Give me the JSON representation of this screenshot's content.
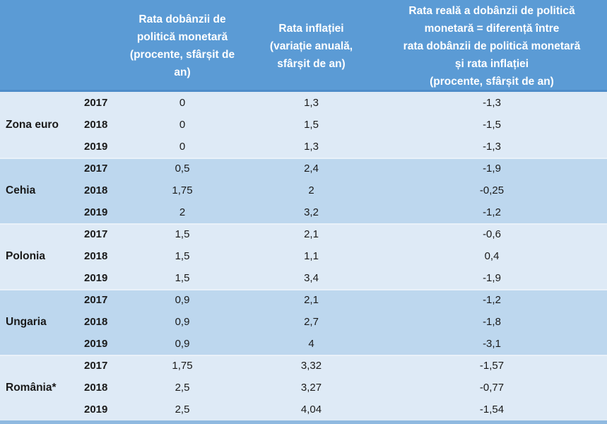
{
  "chart_data": {
    "type": "table",
    "column_headers": {
      "country": {
        "lines": [
          ""
        ]
      },
      "year": {
        "lines": [
          ""
        ]
      },
      "policy_rate": {
        "lines": [
          "Rata dobânzii de",
          "politică monetară",
          "(procente, sfârșit de",
          "an)"
        ]
      },
      "inflation": {
        "lines": [
          "Rata inflației",
          "(variație anuală,",
          "sfârșit de an)"
        ]
      },
      "real_rate": {
        "lines": [
          "Rata reală a dobânzii de politică",
          "monetară = diferență între",
          "rata dobânzii de politică monetară",
          "și rata inflației",
          "(procente, sfârșit de an)"
        ]
      }
    },
    "groups": [
      {
        "country": "Zona euro",
        "rows": [
          {
            "year": "2017",
            "policy_rate": "0",
            "inflation": "1,3",
            "real_rate": "-1,3"
          },
          {
            "year": "2018",
            "policy_rate": "0",
            "inflation": "1,5",
            "real_rate": "-1,5"
          },
          {
            "year": "2019",
            "policy_rate": "0",
            "inflation": "1,3",
            "real_rate": "-1,3"
          }
        ]
      },
      {
        "country": "Cehia",
        "rows": [
          {
            "year": "2017",
            "policy_rate": "0,5",
            "inflation": "2,4",
            "real_rate": "-1,9"
          },
          {
            "year": "2018",
            "policy_rate": "1,75",
            "inflation": "2",
            "real_rate": "-0,25"
          },
          {
            "year": "2019",
            "policy_rate": "2",
            "inflation": "3,2",
            "real_rate": "-1,2"
          }
        ]
      },
      {
        "country": "Polonia",
        "rows": [
          {
            "year": "2017",
            "policy_rate": "1,5",
            "inflation": "2,1",
            "real_rate": "-0,6"
          },
          {
            "year": "2018",
            "policy_rate": "1,5",
            "inflation": "1,1",
            "real_rate": "0,4"
          },
          {
            "year": "2019",
            "policy_rate": "1,5",
            "inflation": "3,4",
            "real_rate": "-1,9"
          }
        ]
      },
      {
        "country": "Ungaria",
        "rows": [
          {
            "year": "2017",
            "policy_rate": "0,9",
            "inflation": "2,1",
            "real_rate": "-1,2"
          },
          {
            "year": "2018",
            "policy_rate": "0,9",
            "inflation": "2,7",
            "real_rate": "-1,8"
          },
          {
            "year": "2019",
            "policy_rate": "0,9",
            "inflation": "4",
            "real_rate": "-3,1"
          }
        ]
      },
      {
        "country": "România*",
        "rows": [
          {
            "year": "2017",
            "policy_rate": "1,75",
            "inflation": "3,32",
            "real_rate": "-1,57"
          },
          {
            "year": "2018",
            "policy_rate": "2,5",
            "inflation": "3,27",
            "real_rate": "-0,77"
          },
          {
            "year": "2019",
            "policy_rate": "2,5",
            "inflation": "4,04",
            "real_rate": "-1,54"
          }
        ]
      }
    ],
    "colors": {
      "header_bg": "#5B9BD5",
      "header_text": "#FFFFFF",
      "header_underline": "#4E8CC9",
      "group_row_light": "#DEEAF6",
      "group_row_dark": "#BDD7EE",
      "group_separator": "#E9F1F9",
      "body_text": "#1A1A1A",
      "bottom_strip": "#8FB9E0"
    }
  }
}
